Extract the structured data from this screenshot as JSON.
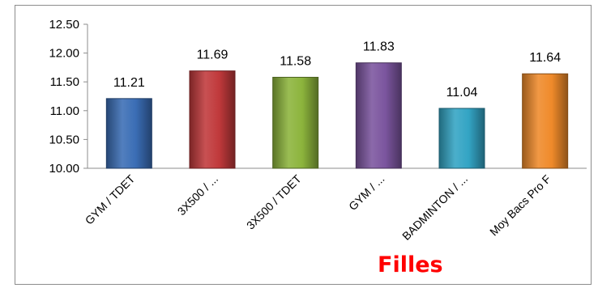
{
  "chart_data": {
    "type": "bar",
    "title": "Filles",
    "categories": [
      "GYM / TDET",
      "3X500 / ...",
      "3X500 / TDET",
      "GYM / ...",
      "BADMINTON / ...",
      "Moy Bacs Pro F"
    ],
    "values": [
      11.21,
      11.69,
      11.58,
      11.83,
      11.04,
      11.64
    ],
    "value_labels": [
      "11.21",
      "11.69",
      "11.58",
      "11.83",
      "11.04",
      "11.64"
    ],
    "ylim": [
      10.0,
      12.5
    ],
    "yticks": [
      "10.00",
      "10.50",
      "11.00",
      "11.50",
      "12.00",
      "12.50"
    ],
    "grid": false,
    "legend": "none",
    "colors": [
      "#3a6db5",
      "#c0393b",
      "#8cb43c",
      "#7b559e",
      "#33a4c4",
      "#ef8a2a"
    ]
  }
}
